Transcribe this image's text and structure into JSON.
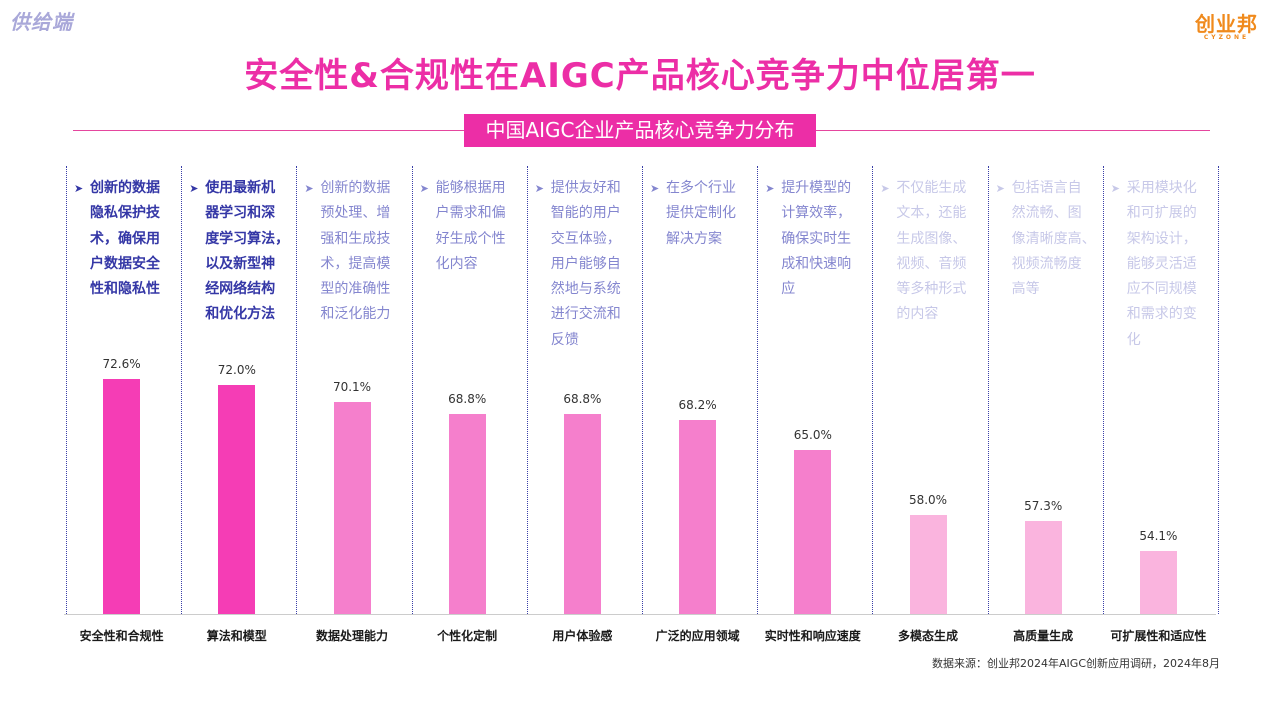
{
  "corner_tag": "供给端",
  "logo": {
    "mark": "创业邦",
    "sub": "CYZONE"
  },
  "title": "安全性&合规性在AIGC产品核心竞争力中位居第一",
  "subtitle": "中国AIGC企业产品核心竞争力分布",
  "source": "数据来源：创业邦2024年AIGC创新应用调研，2024年8月",
  "colors": {
    "title": "#ec2ea6",
    "bar_levels": [
      "#f53db5",
      "#f57fcc",
      "#fab4de"
    ],
    "desc_levels": [
      "#3437a6",
      "#8486cf",
      "#c7c8e8"
    ]
  },
  "descriptions": [
    "创新的数据隐私保护技术，确保用户数据安全性和隐私性",
    "使用最新机器学习和深度学习算法，以及新型神经网络结构和优化方法",
    "创新的数据预处理、增强和生成技术，提高模型的准确性和泛化能力",
    "能够根据用户需求和偏好生成个性化内容",
    "提供友好和智能的用户交互体验，用户能够自然地与系统进行交流和反馈",
    "在多个行业提供定制化解决方案",
    "提升模型的计算效率，确保实时生成和快速响应",
    "不仅能生成文本，还能生成图像、视频、音频等多种形式的内容",
    "包括语言自然流畅、图像清晰度高、视频流畅度高等",
    "采用模块化和可扩展的架构设计，能够灵活适应不同规模和需求的变化"
  ],
  "desc_lines": [
    [
      "创新的数据",
      "隐私保护技",
      "术，确保用",
      "户数据安全",
      "性和隐私性"
    ],
    [
      "使用最新机",
      "器学习和深",
      "度学习算法，",
      "以及新型神",
      "经网络结构",
      "和优化方法"
    ],
    [
      "创新的数据",
      "预处理、增",
      "强和生成技",
      "术，提高模",
      "型的准确性",
      "和泛化能力"
    ],
    [
      "能够根据用",
      "户需求和偏",
      "好生成个性",
      "化内容"
    ],
    [
      "提供友好和",
      "智能的用户",
      "交互体验，",
      "用户能够自",
      "然地与系统",
      "进行交流和",
      "反馈"
    ],
    [
      "在多个行业",
      "提供定制化",
      "解决方案"
    ],
    [
      "提升模型的",
      "计算效率，",
      "确保实时生",
      "成和快速响",
      "应"
    ],
    [
      "不仅能生成",
      "文本，还能",
      "生成图像、",
      "视频、音频",
      "等多种形式",
      "的内容"
    ],
    [
      "包括语言自",
      "然流畅、图",
      "像清晰度高、",
      "视频流畅度",
      "高等"
    ],
    [
      "采用模块化",
      "和可扩展的",
      "架构设计，",
      "能够灵活适",
      "应不同规模",
      "和需求的变",
      "化"
    ]
  ],
  "desc_level": [
    0,
    0,
    1,
    1,
    1,
    1,
    1,
    2,
    2,
    2
  ],
  "chart_data": {
    "type": "bar",
    "title": "中国AIGC企业产品核心竞争力分布",
    "categories": [
      "安全性和合规性",
      "算法和模型",
      "数据处理能力",
      "个性化定制",
      "用户体验感",
      "广泛的应用领域",
      "实时性和响应速度",
      "多模态生成",
      "高质量生成",
      "可扩展性和适应性"
    ],
    "values": [
      72.6,
      72.0,
      70.1,
      68.8,
      68.8,
      68.2,
      65.0,
      58.0,
      57.3,
      54.1
    ],
    "value_labels": [
      "72.6%",
      "72.0%",
      "70.1%",
      "68.8%",
      "68.8%",
      "68.2%",
      "65.0%",
      "58.0%",
      "57.3%",
      "54.1%"
    ],
    "unit": "%",
    "ylim": [
      47.3,
      74.5
    ],
    "grid": false,
    "legend": "none"
  }
}
